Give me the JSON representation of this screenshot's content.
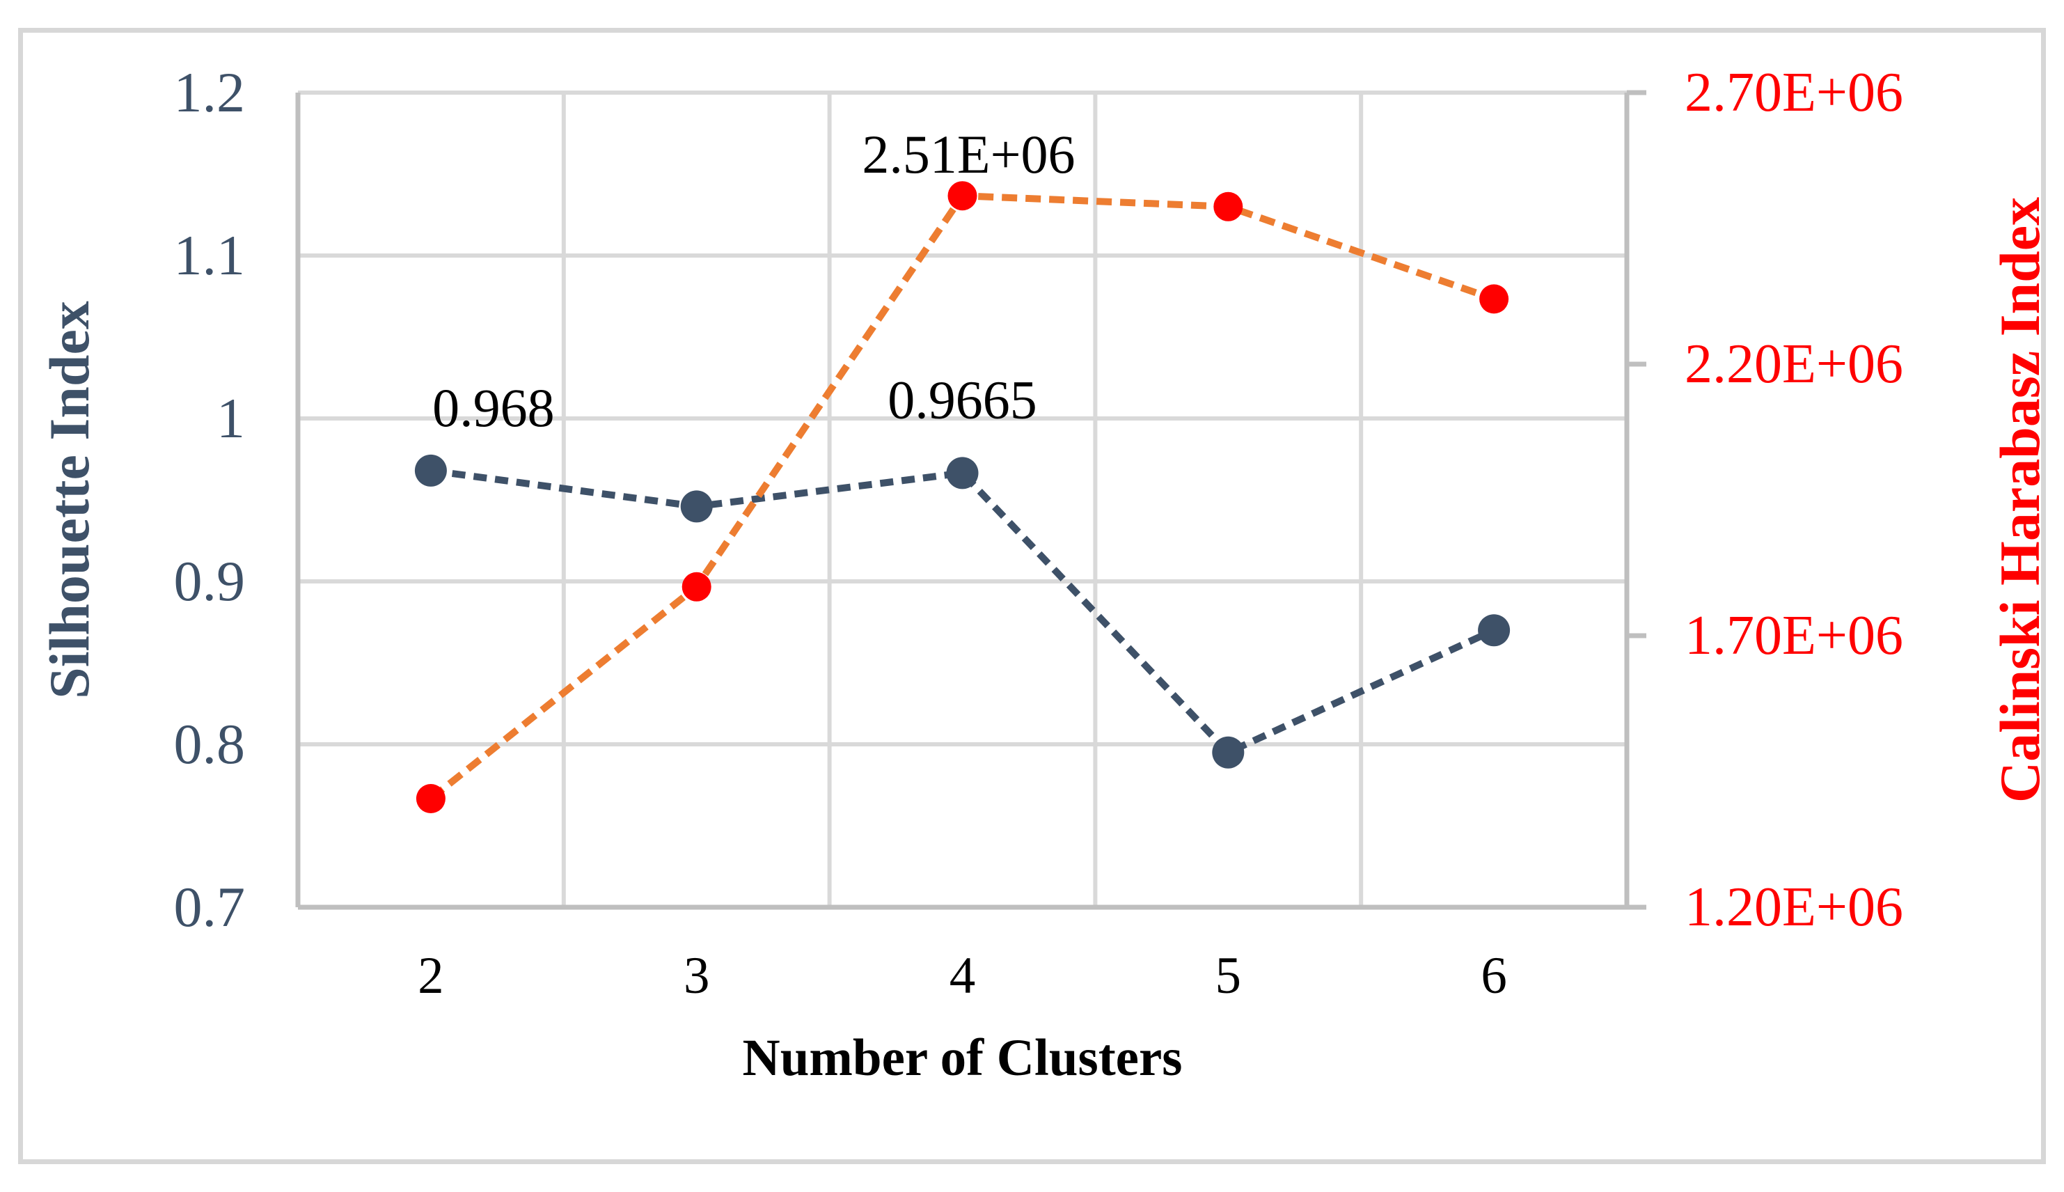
{
  "chart_data": {
    "type": "line",
    "title": "",
    "xlabel": "Number of Clusters",
    "categories": [
      2,
      3,
      4,
      5,
      6
    ],
    "x_tick_labels": [
      "2",
      "3",
      "4",
      "5",
      "6"
    ],
    "grid": true,
    "legend": "none",
    "left_axis": {
      "title": "Silhouette Index",
      "min": 0.7,
      "max": 1.2,
      "tick_labels_top_to_bottom": [
        "1.2",
        "1.1",
        "1",
        "0.9",
        "0.8",
        "0.7"
      ],
      "color": "#3e5168"
    },
    "right_axis": {
      "title": "Calinski Harabasz Index",
      "min": 1200000,
      "max": 2700000,
      "tick_labels_top_to_bottom": [
        "2.70E+06",
        "2.20E+06",
        "1.70E+06",
        "1.20E+06"
      ],
      "color": "#ff0000"
    },
    "series": [
      {
        "name": "Silhouette Index",
        "axis": "left",
        "line_style": "dashed",
        "marker": "circle",
        "line_color": "#3e5168",
        "marker_color": "#3e5168",
        "marker_radius": 23,
        "dash_pattern": "19 12",
        "values": [
          0.968,
          0.946,
          0.9665,
          0.795,
          0.87
        ],
        "data_labels": [
          {
            "index": 0,
            "text": "0.968",
            "dx": 90,
            "dy": 64
          },
          {
            "index": 2,
            "text": "0.9665",
            "dx": 0,
            "dy": 79
          }
        ]
      },
      {
        "name": "Calinski Harabasz Index",
        "axis": "right",
        "line_style": "dashed",
        "marker": "circle",
        "line_color": "#ed7d31",
        "marker_color": "#ff0000",
        "marker_radius": 21,
        "dash_pattern": "22 12",
        "values": [
          1400000,
          1790000,
          2510000,
          2490000,
          2320000
        ],
        "data_labels": [
          {
            "index": 2,
            "text": "2.51E+06",
            "dx": 9,
            "dy": 33
          }
        ]
      }
    ]
  },
  "styles": {
    "background": "#ffffff",
    "frame_border_color": "#d7d7d7",
    "grid_color": "#d9d9d9",
    "axis_line_color": "#bfbfbf",
    "data_label_color": "#000000",
    "x_tick_color": "#000000"
  }
}
